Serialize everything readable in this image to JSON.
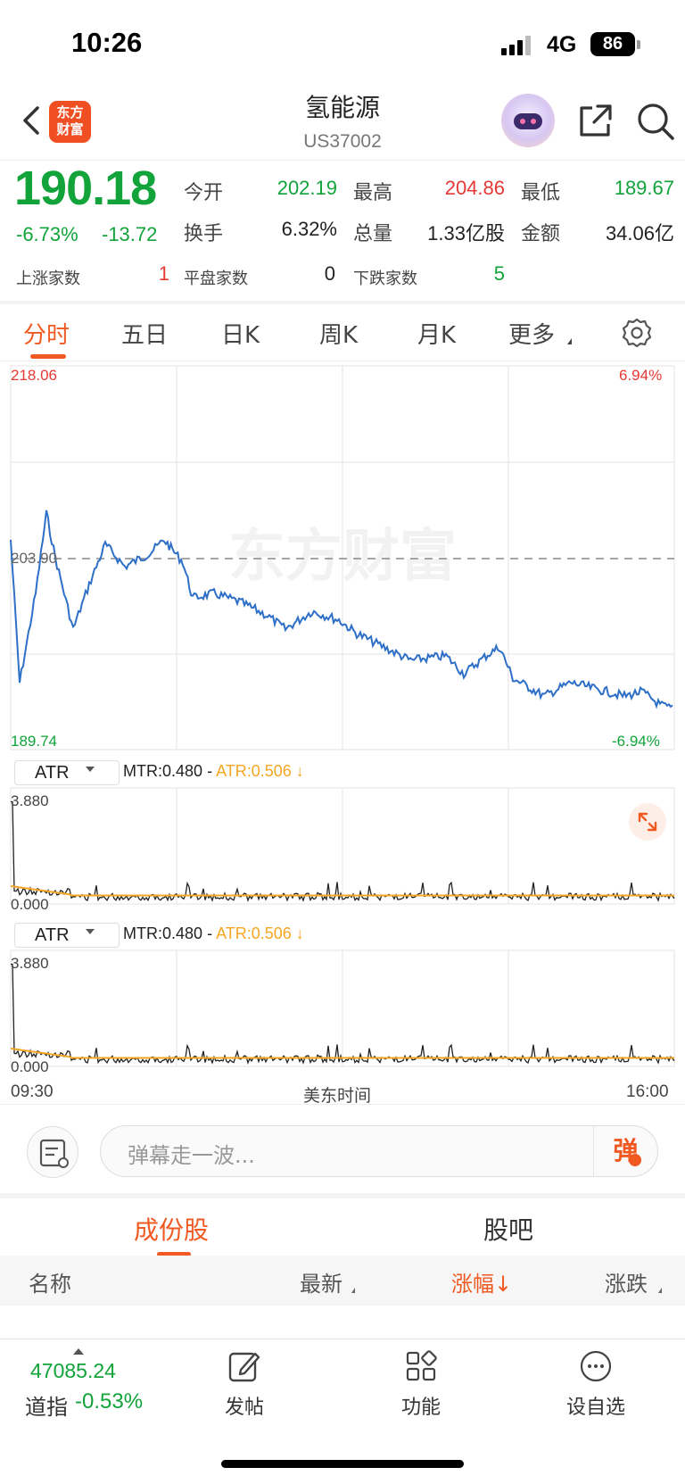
{
  "status_bar": {
    "time": "10:26",
    "network": "4G",
    "battery": "86"
  },
  "header": {
    "title": "氢能源",
    "code": "US37002",
    "logo_text": "东方财富",
    "logo_line1": "东方",
    "logo_line2": "财富"
  },
  "quote": {
    "price": "190.18",
    "change_pct": "-6.73%",
    "change_abs": "-13.72",
    "stats": [
      {
        "label": "今开",
        "value": "202.19",
        "color": "green"
      },
      {
        "label": "最高",
        "value": "204.86",
        "color": "red"
      },
      {
        "label": "最低",
        "value": "189.67",
        "color": "green"
      },
      {
        "label": "换手",
        "value": "6.32%",
        "color": "dark"
      },
      {
        "label": "总量",
        "value": "1.33亿股",
        "color": "dark"
      },
      {
        "label": "金额",
        "value": "34.06亿",
        "color": "dark"
      }
    ],
    "counts": [
      {
        "label": "上涨家数",
        "value": "1",
        "color": "red"
      },
      {
        "label": "平盘家数",
        "value": "0",
        "color": "dark"
      },
      {
        "label": "下跌家数",
        "value": "5",
        "color": "green"
      }
    ]
  },
  "tabs": [
    {
      "label": "分时",
      "active": true
    },
    {
      "label": "五日"
    },
    {
      "label": "日K"
    },
    {
      "label": "周K"
    },
    {
      "label": "月K"
    },
    {
      "label": "更多"
    }
  ],
  "chart": {
    "high_price": "218.06",
    "low_price": "189.74",
    "prev_close": "203.90",
    "high_pct": "6.94%",
    "low_pct": "-6.94%",
    "watermark": "东方财富",
    "colors": {
      "line": "#2e6fc7",
      "prev_close": "#888888",
      "atr": "#f5a623",
      "tr": "#222222"
    }
  },
  "indicators": [
    {
      "name": "ATR",
      "mtr": "MTR:0.480",
      "sep": "-",
      "atr": "ATR:0.506 ↓",
      "max_label": "3.880",
      "min_label": "0.000"
    },
    {
      "name": "ATR",
      "mtr": "MTR:0.480",
      "sep": "-",
      "atr": "ATR:0.506 ↓",
      "max_label": "3.880",
      "min_label": "0.000"
    }
  ],
  "time_axis": {
    "start": "09:30",
    "mid": "美东时间",
    "end": "16:00"
  },
  "comment": {
    "placeholder": "弹幕走一波...",
    "send_label": "弹"
  },
  "sections": [
    {
      "label": "成份股",
      "active": true
    },
    {
      "label": "股吧"
    }
  ],
  "table_header": {
    "name": "名称",
    "latest": "最新",
    "change_pct": "涨幅↓",
    "change": "涨跌"
  },
  "bottom_bar": {
    "index_value": "47085.24",
    "index_name": "道指",
    "index_change": "-0.53%",
    "items": [
      {
        "label": "发帖",
        "icon": "edit-icon"
      },
      {
        "label": "功能",
        "icon": "grid-icon"
      },
      {
        "label": "设自选",
        "icon": "more-icon"
      }
    ]
  }
}
